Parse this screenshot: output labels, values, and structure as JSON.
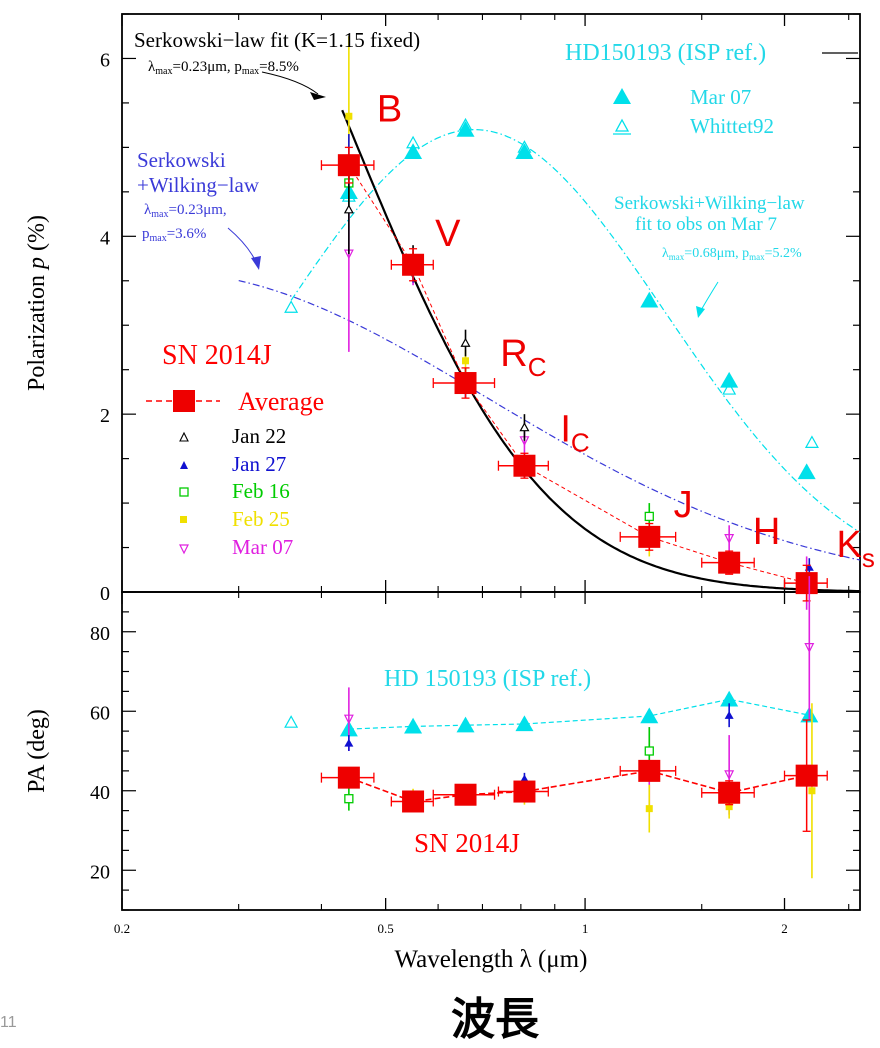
{
  "page": {
    "slide_number": "11",
    "caption": "波長"
  },
  "colors": {
    "black": "#000000",
    "sn_red": "#ff0000",
    "sn_fill": "#ee0000",
    "isp_cyan": "#00e0ea",
    "isp_text": "#22d8e8",
    "wilking_blue": "#3a3ad8",
    "jan22": "#000000",
    "jan27": "#1010d0",
    "feb16": "#00cc00",
    "feb25": "#f0e000",
    "mar07": "#e020e0",
    "band_label": "#ee0000"
  },
  "chart_data": [
    {
      "panel": "polarization",
      "type": "scatter",
      "x_scale": "log",
      "xlim": [
        0.2,
        2.6
      ],
      "ylim": [
        0,
        6.5
      ],
      "ylabel_parts": [
        "Polarization  ",
        "p",
        "  (%)"
      ],
      "x_ticks": [
        0.2,
        0.5,
        1,
        2
      ],
      "x_tick_labels": [
        "0.2",
        "0.5",
        "1",
        "2"
      ],
      "y_ticks": [
        0,
        2,
        4,
        6
      ],
      "y_tick_labels": [
        "0",
        "2",
        "4",
        "6"
      ],
      "band_labels": [
        {
          "main": "B",
          "sub": "",
          "x": 0.44,
          "y": 5.45
        },
        {
          "main": "V",
          "sub": "",
          "x": 0.55,
          "y": 4.05
        },
        {
          "main": "R",
          "sub": "C",
          "x": 0.69,
          "y": 2.7
        },
        {
          "main": "I",
          "sub": "C",
          "x": 0.85,
          "y": 1.85
        },
        {
          "main": "J",
          "sub": "",
          "x": 1.26,
          "y": 1.0
        },
        {
          "main": "H",
          "sub": "",
          "x": 1.66,
          "y": 0.7
        },
        {
          "main": "K",
          "sub": "s",
          "x": 2.22,
          "y": 0.55
        }
      ],
      "series": [
        {
          "key": "avg",
          "name": "Average",
          "marker": "square",
          "points": [
            {
              "x": 0.44,
              "y": 4.8,
              "xerr": 0.04,
              "yerr": 0.2
            },
            {
              "x": 0.55,
              "y": 3.68,
              "xerr": 0.04,
              "yerr": 0.18
            },
            {
              "x": 0.66,
              "y": 2.35,
              "xerr": 0.07,
              "yerr": 0.17
            },
            {
              "x": 0.81,
              "y": 1.42,
              "xerr": 0.07,
              "yerr": 0.14
            },
            {
              "x": 1.25,
              "y": 0.62,
              "xerr": 0.12,
              "yerr": 0.15
            },
            {
              "x": 1.65,
              "y": 0.33,
              "xerr": 0.15,
              "yerr": 0.13
            },
            {
              "x": 2.16,
              "y": 0.1,
              "xerr": 0.16,
              "yerr": 0.2
            }
          ]
        },
        {
          "key": "jan22",
          "name": "Jan 22",
          "marker": "triangle-open",
          "points": [
            {
              "x": 0.44,
              "y": 4.3,
              "yerr": 0.5
            },
            {
              "x": 0.55,
              "y": 3.75,
              "yerr": 0.15
            },
            {
              "x": 0.66,
              "y": 2.8,
              "yerr": 0.15
            },
            {
              "x": 0.81,
              "y": 1.85,
              "yerr": 0.15
            }
          ]
        },
        {
          "key": "jan27",
          "name": "Jan 27",
          "marker": "triangle",
          "points": [
            {
              "x": 0.44,
              "y": 4.85,
              "yerr": 0.3
            },
            {
              "x": 0.55,
              "y": 3.6,
              "yerr": 0.12
            },
            {
              "x": 0.66,
              "y": 2.3,
              "yerr": 0.12
            },
            {
              "x": 0.81,
              "y": 1.4,
              "yerr": 0.12
            },
            {
              "x": 2.18,
              "y": 0.28,
              "yerr": 0.1
            }
          ]
        },
        {
          "key": "feb16",
          "name": "Feb 16",
          "marker": "square-open",
          "points": [
            {
              "x": 0.44,
              "y": 4.6,
              "yerr": 0.3
            },
            {
              "x": 0.55,
              "y": 3.65,
              "yerr": 0.12
            },
            {
              "x": 0.66,
              "y": 2.4,
              "yerr": 0.12
            },
            {
              "x": 1.25,
              "y": 0.85,
              "yerr": 0.15
            }
          ]
        },
        {
          "key": "feb25",
          "name": "Feb 25",
          "marker": "square-small",
          "points": [
            {
              "x": 0.44,
              "y": 5.35,
              "yerr": 0.9
            },
            {
              "x": 0.55,
              "y": 3.7,
              "yerr": 0.12
            },
            {
              "x": 0.66,
              "y": 2.6,
              "yerr": 0.12
            },
            {
              "x": 1.25,
              "y": 0.55,
              "yerr": 0.15
            }
          ]
        },
        {
          "key": "mar07",
          "name": "Mar 07",
          "marker": "triangle-down-open",
          "points": [
            {
              "x": 0.44,
              "y": 3.8,
              "yerr": 1.1
            },
            {
              "x": 0.55,
              "y": 3.6,
              "yerr": 0.15
            },
            {
              "x": 0.81,
              "y": 1.7,
              "yerr": 0.2
            },
            {
              "x": 1.25,
              "y": 0.6,
              "yerr": 0.15
            },
            {
              "x": 1.65,
              "y": 0.6,
              "yerr": 0.15
            },
            {
              "x": 2.16,
              "y": 0.1,
              "yerr": 0.3
            }
          ]
        },
        {
          "key": "isp_mar07",
          "name": "Mar 07",
          "marker": "triangle",
          "points": [
            {
              "x": 0.44,
              "y": 4.5
            },
            {
              "x": 0.55,
              "y": 4.95
            },
            {
              "x": 0.66,
              "y": 5.2
            },
            {
              "x": 0.81,
              "y": 4.95
            },
            {
              "x": 1.25,
              "y": 3.28
            },
            {
              "x": 1.65,
              "y": 2.38
            },
            {
              "x": 2.16,
              "y": 1.35
            }
          ]
        },
        {
          "key": "isp_whittet",
          "name": "Whittet92",
          "marker": "triangle-open",
          "points": [
            {
              "x": 0.36,
              "y": 3.2
            },
            {
              "x": 0.44,
              "y": 4.45
            },
            {
              "x": 0.55,
              "y": 5.05
            },
            {
              "x": 0.66,
              "y": 5.25
            },
            {
              "x": 0.81,
              "y": 5.0
            },
            {
              "x": 1.65,
              "y": 2.28
            },
            {
              "x": 2.2,
              "y": 1.68
            }
          ]
        }
      ],
      "curves": [
        {
          "key": "serk",
          "law": "serkowski",
          "K": 1.15,
          "lmax": 0.23,
          "pmax": 8.5,
          "x_from": 0.43,
          "x_to": 2.6
        },
        {
          "key": "wilk",
          "law": "serkowski-wilking",
          "lmax": 0.23,
          "pmax": 3.6,
          "x_from": 0.3,
          "x_to": 2.6
        },
        {
          "key": "isp",
          "law": "serkowski-wilking",
          "lmax": 0.68,
          "pmax": 5.2,
          "x_from": 0.36,
          "x_to": 2.6
        }
      ],
      "annotations": {
        "serk_line1": "Serkowski−law fit (K=1.15 fixed)",
        "serk_line2": {
          "l": "λ",
          "l_sub": "max",
          "l_val": "=0.23μm,  ",
          "p": "p",
          "p_sub": "max",
          "p_val": "=8.5%"
        },
        "wilk_title1": "Serkowski",
        "wilk_title2": "+Wilking−law",
        "wilk_l": {
          "l": "λ",
          "sub": "max",
          "val": "=0.23μm,"
        },
        "wilk_p": {
          "p": "p",
          "sub": "max",
          "val": "=3.6%"
        },
        "isp_title": "HD150193 (ISP ref.)",
        "isp_fit1": "Serkowski+Wilking−law",
        "isp_fit2": "fit to obs on Mar 7",
        "isp_fit3": {
          "l": "λ",
          "l_sub": "max",
          "l_val": "=0.68μm,  ",
          "p": "p",
          "p_sub": "max",
          "p_val": "=5.2%"
        },
        "sn_title": "SN 2014J",
        "legend_items": [
          "Average",
          "Jan 22",
          "Jan 27",
          "Feb 16",
          "Feb 25",
          "Mar 07"
        ],
        "isp_legend_items": [
          "Mar 07",
          "Whittet92"
        ]
      }
    },
    {
      "panel": "position-angle",
      "type": "scatter",
      "x_scale": "log",
      "xlim": [
        0.2,
        2.6
      ],
      "ylim": [
        10,
        90
      ],
      "ylabel": "PA  (deg)",
      "xlabel_parts": [
        "Wavelength  ",
        "λ",
        "  (μm)"
      ],
      "x_ticks": [
        0.2,
        0.5,
        1,
        2
      ],
      "x_tick_labels": [
        "0.2",
        "0.5",
        "1",
        "2"
      ],
      "y_ticks": [
        20,
        40,
        60,
        80
      ],
      "y_tick_labels": [
        "20",
        "40",
        "60",
        "80"
      ],
      "isp_label": "HD 150193 (ISP ref.)",
      "sn_label": "SN 2014J",
      "series": [
        {
          "key": "avg",
          "name": "Average",
          "marker": "square",
          "points": [
            {
              "x": 0.44,
              "y": 43.3,
              "xerr": 0.04,
              "yerr": 2
            },
            {
              "x": 0.55,
              "y": 37.3,
              "xerr": 0.04,
              "yerr": 1.5
            },
            {
              "x": 0.66,
              "y": 39.0,
              "xerr": 0.07,
              "yerr": 1.5
            },
            {
              "x": 0.81,
              "y": 39.8,
              "xerr": 0.07,
              "yerr": 1.5
            },
            {
              "x": 1.25,
              "y": 45.0,
              "xerr": 0.12,
              "yerr": 2.5
            },
            {
              "x": 1.65,
              "y": 39.5,
              "xerr": 0.15,
              "yerr": 3
            },
            {
              "x": 2.16,
              "y": 43.8,
              "xerr": 0.16,
              "yerr": 14
            }
          ]
        },
        {
          "key": "jan27",
          "name": "Jan 27",
          "marker": "triangle",
          "points": [
            {
              "x": 0.44,
              "y": 52,
              "yerr": 2
            },
            {
              "x": 0.81,
              "y": 43,
              "yerr": 1.5
            },
            {
              "x": 1.65,
              "y": 59,
              "yerr": 3
            }
          ]
        },
        {
          "key": "feb16",
          "name": "Feb 16",
          "marker": "square-open",
          "points": [
            {
              "x": 0.44,
              "y": 38,
              "yerr": 3
            },
            {
              "x": 1.25,
              "y": 50,
              "yerr": 6
            }
          ]
        },
        {
          "key": "feb25",
          "name": "Feb 25",
          "marker": "square-small",
          "points": [
            {
              "x": 0.55,
              "y": 38.5,
              "yerr": 2
            },
            {
              "x": 0.81,
              "y": 38,
              "yerr": 1.5
            },
            {
              "x": 1.25,
              "y": 35.5,
              "yerr": 6
            },
            {
              "x": 1.65,
              "y": 36,
              "yerr": 3
            },
            {
              "x": 2.2,
              "y": 40,
              "yerr": 22
            }
          ]
        },
        {
          "key": "mar07",
          "name": "Mar 07",
          "marker": "triangle-down-open",
          "points": [
            {
              "x": 0.44,
              "y": 58,
              "yerr": 8
            },
            {
              "x": 1.25,
              "y": 46,
              "yerr": 10
            },
            {
              "x": 1.65,
              "y": 44,
              "yerr": 10
            },
            {
              "x": 2.18,
              "y": 76,
              "yerr": 18
            }
          ]
        },
        {
          "key": "isp_mar07",
          "name": "Mar 07",
          "marker": "triangle",
          "points": [
            {
              "x": 0.44,
              "y": 55.5
            },
            {
              "x": 0.55,
              "y": 56.2
            },
            {
              "x": 0.66,
              "y": 56.5
            },
            {
              "x": 0.81,
              "y": 56.8
            },
            {
              "x": 1.25,
              "y": 58.8
            },
            {
              "x": 1.65,
              "y": 63
            },
            {
              "x": 2.18,
              "y": 59
            }
          ]
        },
        {
          "key": "isp_whittet",
          "name": "Whittet92",
          "marker": "triangle-open",
          "points": [
            {
              "x": 0.36,
              "y": 57.2
            }
          ]
        }
      ]
    }
  ]
}
